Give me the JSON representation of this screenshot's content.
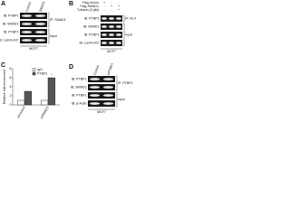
{
  "panel_a": {
    "letter": "A",
    "lanes": [
      "Control",
      "SMAD1"
    ],
    "rows": [
      "IB: PTBP1",
      "IB: SMAD1",
      "IB: PTBP1",
      "IB: Lamin A/C"
    ],
    "groups": [
      {
        "label": "IP: SMAD1",
        "rows": [
          0,
          1
        ]
      },
      {
        "label": "Input",
        "rows": [
          2,
          3
        ]
      }
    ],
    "cell_line": "MCF7"
  },
  "panel_b": {
    "letter": "B",
    "conditions": [
      "Flag-Vector",
      "Flag-SMAD1",
      "Tubacin (5 µM)"
    ],
    "signs": [
      [
        "+",
        "-",
        "-"
      ],
      [
        "-",
        "+",
        "+"
      ],
      [
        "-",
        "-",
        "+"
      ]
    ],
    "rows": [
      "IB: PTBP1",
      "IB: SMAD1",
      "IB: PTBP1",
      "IB: Lamin A/C"
    ],
    "groups": [
      {
        "label": "IP: Ac-K",
        "rows": [
          0,
          0
        ]
      },
      {
        "label": "Input",
        "rows": [
          1,
          3
        ]
      }
    ],
    "cell_line": "MCF7"
  },
  "panel_d": {
    "letter": "D",
    "lanes": [
      "Control",
      "siPTBP1"
    ],
    "rows": [
      "IB: PTBP1",
      "IB: SMAD1",
      "IB: PTBP1",
      "IB: β-Actin"
    ],
    "groups": [
      {
        "label": "IP: PTBP1",
        "rows": [
          0,
          1
        ]
      },
      {
        "label": "Input",
        "rows": [
          2,
          3
        ]
      }
    ],
    "cell_line": "MCF7"
  },
  "chart_data": {
    "type": "bar",
    "letter": "C",
    "y_label": "Relative fold enrichment",
    "categories": [
      "siControl",
      "siSMAD1"
    ],
    "series": [
      {
        "name": "IgG",
        "color": "#ffffff",
        "values": [
          1,
          1
        ]
      },
      {
        "name": "PTBP1",
        "color": "#555555",
        "values": [
          3,
          6
        ]
      }
    ],
    "ylim": [
      0,
      8
    ],
    "yticks": [
      0,
      2,
      4,
      6,
      8
    ],
    "annotation": "*"
  }
}
